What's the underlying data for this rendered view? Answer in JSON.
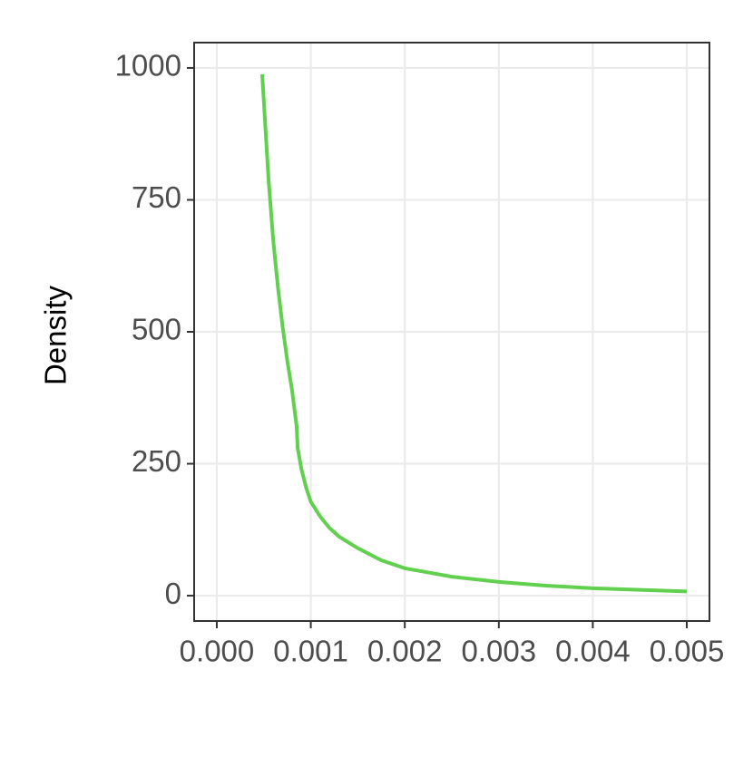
{
  "chart_data": {
    "type": "line",
    "y_label": "Density",
    "x": [
      0.000483,
      0.00055,
      0.0006,
      0.00065,
      0.0007,
      0.00075,
      0.0008,
      0.00085,
      0.00086,
      0.0009,
      0.00095,
      0.001,
      0.0011,
      0.0012,
      0.0013,
      0.0015,
      0.00175,
      0.002,
      0.0025,
      0.003,
      0.0035,
      0.004,
      0.0045,
      0.005
    ],
    "series": [
      {
        "name": "Density",
        "color": "#61d04f",
        "values": [
          988,
          790,
          674,
          585,
          510,
          445,
          390,
          320,
          280,
          240,
          205,
          178,
          150,
          128,
          112,
          90,
          67,
          52,
          36,
          26,
          19,
          14,
          11,
          8
        ]
      }
    ],
    "xlim": [
      -0.000241,
      0.005241
    ],
    "ylim": [
      -48,
      1048
    ],
    "xticks": [
      {
        "value": 0,
        "label": "0.000"
      },
      {
        "value": 0.001,
        "label": "0.001"
      },
      {
        "value": 0.002,
        "label": "0.002"
      },
      {
        "value": 0.003,
        "label": "0.003"
      },
      {
        "value": 0.004,
        "label": "0.004"
      },
      {
        "value": 0.005,
        "label": "0.005"
      }
    ],
    "yticks": [
      0,
      250,
      500,
      750,
      1000
    ],
    "grid": true
  }
}
